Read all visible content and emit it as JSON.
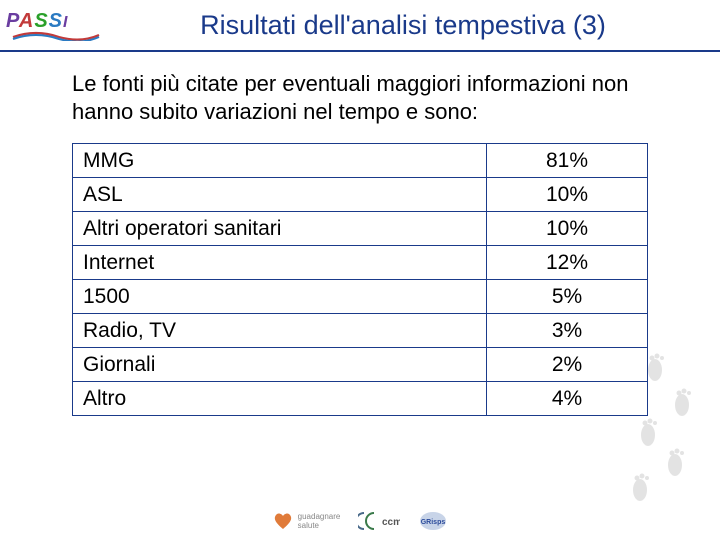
{
  "header": {
    "title": "Risultati dell'analisi tempestiva (3)"
  },
  "intro": "Le fonti più citate per eventuali maggiori informazioni non hanno subito variazioni nel tempo e sono:",
  "table": {
    "rows": [
      {
        "label": "MMG",
        "value": "81%"
      },
      {
        "label": "ASL",
        "value": "10%"
      },
      {
        "label": "Altri operatori sanitari",
        "value": "10%"
      },
      {
        "label": "Internet",
        "value": "12%"
      },
      {
        "label": "1500",
        "value": "5%"
      },
      {
        "label": "Radio, TV",
        "value": "3%"
      },
      {
        "label": "Giornali",
        "value": "2%"
      },
      {
        "label": "Altro",
        "value": "4%"
      }
    ],
    "border_color": "#1a3a8a",
    "label_fontsize": 21,
    "value_fontsize": 21
  },
  "colors": {
    "title": "#1a3a8a",
    "text": "#000000",
    "background": "#ffffff"
  }
}
